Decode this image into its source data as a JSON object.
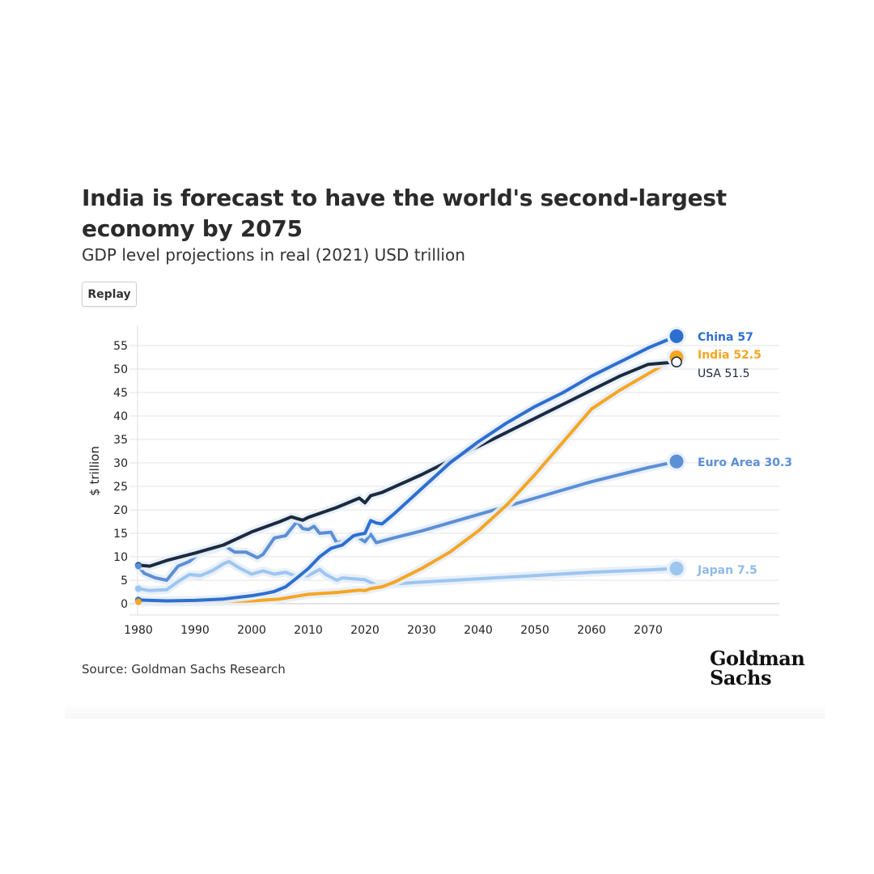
{
  "header": {
    "title": "India is forecast to have the world's second-largest economy by 2075",
    "subtitle": "GDP level projections in real (2021) USD trillion",
    "replay_label": "Replay"
  },
  "footer": {
    "source": "Source: Goldman Sachs Research",
    "logo_line1": "Goldman",
    "logo_line2": "Sachs"
  },
  "chart_data": {
    "type": "line",
    "title": "India is forecast to have the world's second-largest economy by 2075",
    "subtitle": "GDP level projections in real (2021) USD trillion",
    "xlabel": "",
    "ylabel": "$ trillion",
    "xlim": [
      1980,
      2075
    ],
    "ylim": [
      0,
      57
    ],
    "x_ticks": [
      1980,
      1990,
      2000,
      2010,
      2020,
      2030,
      2040,
      2050,
      2060,
      2070
    ],
    "y_ticks": [
      0,
      5,
      10,
      15,
      20,
      25,
      30,
      35,
      40,
      45,
      50,
      55
    ],
    "grid": "horizontal",
    "legend": "end-of-line labels, right",
    "series": [
      {
        "name": "China",
        "end_label": "China 57",
        "color": "#2d6fd0",
        "points": [
          [
            1980,
            0.8
          ],
          [
            1985,
            0.6
          ],
          [
            1990,
            0.7
          ],
          [
            1995,
            1.0
          ],
          [
            2000,
            1.7
          ],
          [
            2002,
            2.1
          ],
          [
            2004,
            2.6
          ],
          [
            2006,
            3.6
          ],
          [
            2008,
            5.5
          ],
          [
            2010,
            7.5
          ],
          [
            2012,
            10.0
          ],
          [
            2014,
            11.8
          ],
          [
            2016,
            12.5
          ],
          [
            2018,
            14.5
          ],
          [
            2019,
            14.8
          ],
          [
            2020,
            15.0
          ],
          [
            2021,
            17.7
          ],
          [
            2022,
            17.2
          ],
          [
            2023,
            17.0
          ],
          [
            2025,
            19.0
          ],
          [
            2030,
            24.5
          ],
          [
            2035,
            30.0
          ],
          [
            2040,
            34.5
          ],
          [
            2045,
            38.5
          ],
          [
            2050,
            42.0
          ],
          [
            2055,
            45.0
          ],
          [
            2060,
            48.5
          ],
          [
            2065,
            51.5
          ],
          [
            2070,
            54.5
          ],
          [
            2075,
            57.0
          ]
        ]
      },
      {
        "name": "India",
        "end_label": "India 52.5",
        "color": "#f5a623",
        "points": [
          [
            1980,
            0.4
          ],
          [
            1990,
            0.4
          ],
          [
            2000,
            0.6
          ],
          [
            2005,
            1.0
          ],
          [
            2008,
            1.6
          ],
          [
            2010,
            2.0
          ],
          [
            2015,
            2.4
          ],
          [
            2019,
            2.9
          ],
          [
            2020,
            2.8
          ],
          [
            2021,
            3.2
          ],
          [
            2023,
            3.6
          ],
          [
            2025,
            4.5
          ],
          [
            2030,
            7.5
          ],
          [
            2035,
            11.0
          ],
          [
            2040,
            15.5
          ],
          [
            2045,
            21.0
          ],
          [
            2050,
            27.5
          ],
          [
            2055,
            34.5
          ],
          [
            2060,
            41.5
          ],
          [
            2065,
            45.5
          ],
          [
            2070,
            49.0
          ],
          [
            2075,
            52.5
          ]
        ]
      },
      {
        "name": "USA",
        "end_label": "USA 51.5",
        "color": "#1b2a3f",
        "points": [
          [
            1980,
            8.2
          ],
          [
            1982,
            8.0
          ],
          [
            1985,
            9.2
          ],
          [
            1990,
            10.8
          ],
          [
            1995,
            12.5
          ],
          [
            2000,
            15.3
          ],
          [
            2005,
            17.5
          ],
          [
            2007,
            18.5
          ],
          [
            2009,
            17.8
          ],
          [
            2010,
            18.4
          ],
          [
            2015,
            20.5
          ],
          [
            2019,
            22.5
          ],
          [
            2020,
            21.5
          ],
          [
            2021,
            23.0
          ],
          [
            2023,
            23.7
          ],
          [
            2025,
            24.8
          ],
          [
            2030,
            27.5
          ],
          [
            2035,
            30.5
          ],
          [
            2040,
            33.5
          ],
          [
            2045,
            36.5
          ],
          [
            2050,
            39.5
          ],
          [
            2055,
            42.5
          ],
          [
            2060,
            45.5
          ],
          [
            2065,
            48.5
          ],
          [
            2070,
            51.0
          ],
          [
            2075,
            51.5
          ]
        ]
      },
      {
        "name": "Euro Area",
        "end_label": "Euro Area 30.3",
        "color": "#5b8fd6",
        "points": [
          [
            1980,
            8.0
          ],
          [
            1981,
            6.5
          ],
          [
            1983,
            5.5
          ],
          [
            1985,
            5.0
          ],
          [
            1987,
            8.0
          ],
          [
            1989,
            9.0
          ],
          [
            1991,
            11.0
          ],
          [
            1993,
            11.5
          ],
          [
            1995,
            12.5
          ],
          [
            1997,
            11.0
          ],
          [
            1999,
            11.0
          ],
          [
            2001,
            9.8
          ],
          [
            2002,
            10.5
          ],
          [
            2004,
            14.0
          ],
          [
            2006,
            14.5
          ],
          [
            2008,
            17.5
          ],
          [
            2009,
            16.0
          ],
          [
            2010,
            15.8
          ],
          [
            2011,
            16.5
          ],
          [
            2012,
            15.0
          ],
          [
            2014,
            15.2
          ],
          [
            2015,
            13.0
          ],
          [
            2017,
            13.5
          ],
          [
            2018,
            14.5
          ],
          [
            2019,
            14.0
          ],
          [
            2020,
            13.2
          ],
          [
            2021,
            14.8
          ],
          [
            2022,
            13.0
          ],
          [
            2025,
            14.0
          ],
          [
            2030,
            15.5
          ],
          [
            2040,
            19.0
          ],
          [
            2050,
            22.5
          ],
          [
            2060,
            26.0
          ],
          [
            2070,
            29.0
          ],
          [
            2075,
            30.3
          ]
        ]
      },
      {
        "name": "Japan",
        "end_label": "Japan 7.5",
        "color": "#9cc6f0",
        "points": [
          [
            1980,
            3.2
          ],
          [
            1982,
            2.8
          ],
          [
            1985,
            3.0
          ],
          [
            1987,
            4.7
          ],
          [
            1989,
            6.2
          ],
          [
            1991,
            6.0
          ],
          [
            1993,
            7.0
          ],
          [
            1995,
            8.5
          ],
          [
            1996,
            9.0
          ],
          [
            1998,
            7.5
          ],
          [
            2000,
            6.3
          ],
          [
            2002,
            7.0
          ],
          [
            2004,
            6.3
          ],
          [
            2006,
            6.7
          ],
          [
            2008,
            5.8
          ],
          [
            2010,
            6.0
          ],
          [
            2012,
            7.3
          ],
          [
            2013,
            6.3
          ],
          [
            2015,
            5.0
          ],
          [
            2016,
            5.5
          ],
          [
            2018,
            5.3
          ],
          [
            2020,
            5.1
          ],
          [
            2022,
            4.0
          ],
          [
            2025,
            4.2
          ],
          [
            2030,
            4.6
          ],
          [
            2040,
            5.3
          ],
          [
            2050,
            6.0
          ],
          [
            2060,
            6.7
          ],
          [
            2070,
            7.2
          ],
          [
            2075,
            7.5
          ]
        ]
      }
    ]
  }
}
